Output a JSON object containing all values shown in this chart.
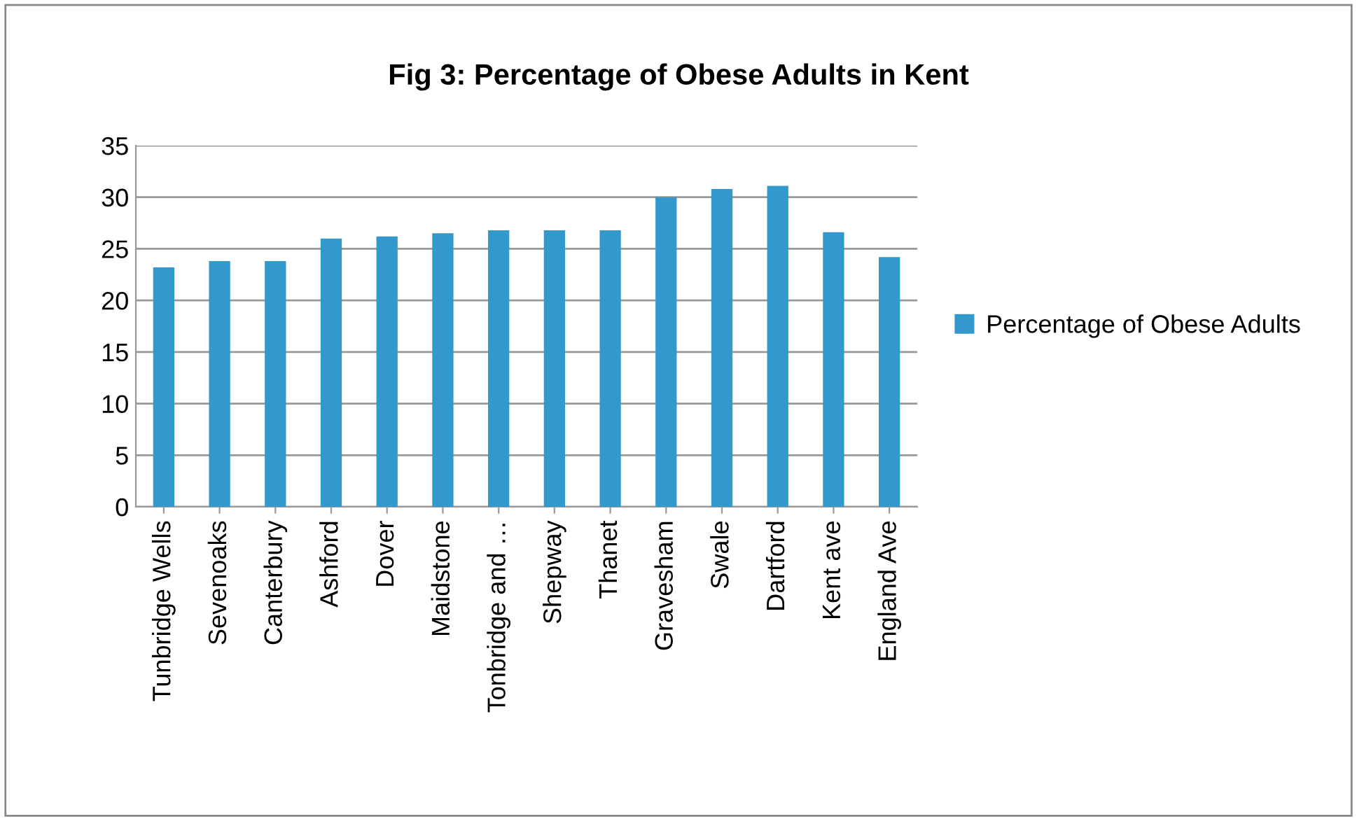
{
  "chart_data": {
    "type": "bar",
    "title": "Fig 3: Percentage of Obese Adults in Kent",
    "categories": [
      "Tunbridge Wells",
      "Sevenoaks",
      "Canterbury",
      "Ashford",
      "Dover",
      "Maidstone",
      "Tonbridge and …",
      "Shepway",
      "Thanet",
      "Gravesham",
      "Swale",
      "Dartford",
      "Kent ave",
      "England Ave"
    ],
    "series": [
      {
        "name": "Percentage of Obese Adults",
        "color": "#3399cc",
        "values": [
          23.2,
          23.8,
          23.8,
          26.0,
          26.2,
          26.5,
          26.8,
          26.8,
          26.8,
          30.0,
          30.8,
          31.1,
          26.6,
          24.2
        ]
      }
    ],
    "ylim": [
      0,
      35
    ],
    "yticks": [
      0,
      5,
      10,
      15,
      20,
      25,
      30,
      35
    ],
    "grid": "y",
    "legend": "right"
  }
}
